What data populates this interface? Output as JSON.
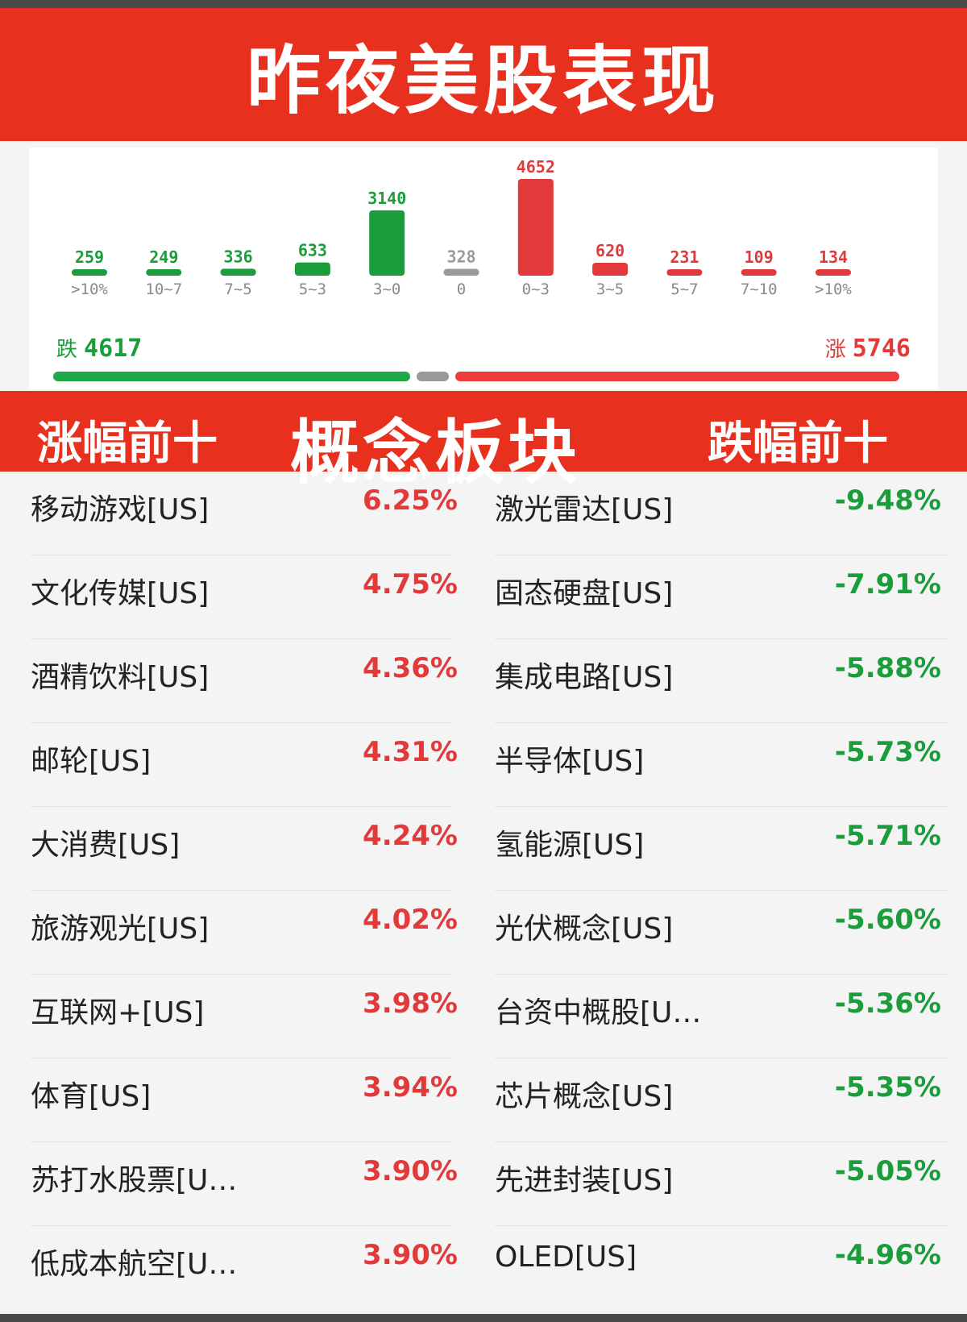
{
  "title": "昨夜美股表现",
  "colors": {
    "band_red": "#e8301f",
    "rise_red": "#e23a3a",
    "fall_green": "#1b9d3c",
    "flat_gray": "#9a9a9a"
  },
  "chart_data": {
    "type": "bar",
    "categories": [
      ">10%",
      "10~7",
      "7~5",
      "5~3",
      "3~0",
      "0",
      "0~3",
      "3~5",
      "5~7",
      "7~10",
      ">10%"
    ],
    "values": [
      259,
      249,
      336,
      633,
      3140,
      328,
      4652,
      620,
      231,
      109,
      134
    ],
    "bar_colors": [
      "fall",
      "fall",
      "fall",
      "fall",
      "fall",
      "flat",
      "rise",
      "rise",
      "rise",
      "rise",
      "rise"
    ],
    "title": "",
    "xlabel": "",
    "ylabel": "",
    "ylim": [
      0,
      4652
    ],
    "legend": "none",
    "grid": false
  },
  "totals": {
    "fall_label": "跌",
    "fall_value": "4617",
    "rise_label": "涨",
    "rise_value": "5746",
    "fall_count": 4617,
    "flat_count": 328,
    "rise_count": 5746
  },
  "section": {
    "left_header": "涨幅前十",
    "center_header": "概念板块",
    "right_header": "跌幅前十"
  },
  "gainers": [
    {
      "name": "移动游戏[US]",
      "pct": "6.25%"
    },
    {
      "name": "文化传媒[US]",
      "pct": "4.75%"
    },
    {
      "name": "酒精饮料[US]",
      "pct": "4.36%"
    },
    {
      "name": "邮轮[US]",
      "pct": "4.31%"
    },
    {
      "name": "大消费[US]",
      "pct": "4.24%"
    },
    {
      "name": "旅游观光[US]",
      "pct": "4.02%"
    },
    {
      "name": "互联网+[US]",
      "pct": "3.98%"
    },
    {
      "name": "体育[US]",
      "pct": "3.94%"
    },
    {
      "name": "苏打水股票[U…",
      "pct": "3.90%"
    },
    {
      "name": "低成本航空[U…",
      "pct": "3.90%"
    }
  ],
  "losers": [
    {
      "name": "激光雷达[US]",
      "pct": "-9.48%"
    },
    {
      "name": "固态硬盘[US]",
      "pct": "-7.91%"
    },
    {
      "name": "集成电路[US]",
      "pct": "-5.88%"
    },
    {
      "name": "半导体[US]",
      "pct": "-5.73%"
    },
    {
      "name": "氢能源[US]",
      "pct": "-5.71%"
    },
    {
      "name": "光伏概念[US]",
      "pct": "-5.60%"
    },
    {
      "name": "台资中概股[U…",
      "pct": "-5.36%"
    },
    {
      "name": "芯片概念[US]",
      "pct": "-5.35%"
    },
    {
      "name": "先进封装[US]",
      "pct": "-5.05%"
    },
    {
      "name": "OLED[US]",
      "pct": "-4.96%"
    }
  ]
}
